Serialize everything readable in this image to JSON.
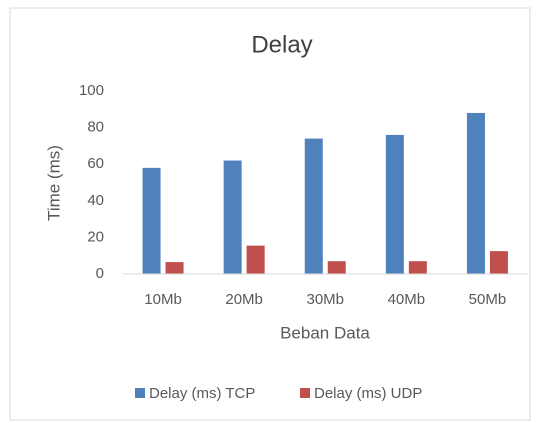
{
  "chart_data": {
    "type": "bar",
    "title": "Delay",
    "x_label": "Beban Data",
    "y_label": "Time (ms)",
    "categories": [
      "10Mb",
      "20Mb",
      "30Mb",
      "40Mb",
      "50Mb"
    ],
    "series": [
      {
        "name": "Delay (ms) TCP",
        "color": "#4f81bd",
        "values": [
          58,
          62,
          74,
          76,
          88
        ]
      },
      {
        "name": "Delay (ms) UDP",
        "color": "#c0504d",
        "values": [
          6.5,
          15.5,
          7,
          7,
          12.5
        ]
      }
    ],
    "ylim": [
      0,
      100
    ],
    "yticks": [
      0,
      20,
      40,
      60,
      80,
      100
    ],
    "grid": false,
    "legend": "bottom"
  }
}
